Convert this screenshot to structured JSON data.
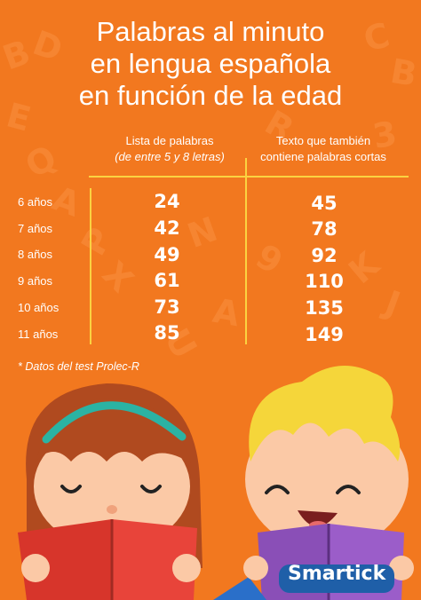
{
  "title": {
    "line1": "Palabras al minuto",
    "line2": "en lengua española",
    "line3": "en función de la edad"
  },
  "columns": {
    "col1_line1": "Lista de palabras",
    "col1_line2": "(de entre 5 y 8 letras)",
    "col2_line1": "Texto que también",
    "col2_line2": "contiene palabras cortas"
  },
  "rows": [
    {
      "age": "6 años",
      "list": "24",
      "text": "45"
    },
    {
      "age": "7 años",
      "list": "42",
      "text": "78"
    },
    {
      "age": "8 años",
      "list": "49",
      "text": "92"
    },
    {
      "age": "9 años",
      "list": "61",
      "text": "110"
    },
    {
      "age": "10 años",
      "list": "73",
      "text": "135"
    },
    {
      "age": "11 años",
      "list": "85",
      "text": "149"
    }
  ],
  "note": "* Datos del test Prolec-R",
  "logo": "Smartick",
  "colors": {
    "background": "#f2781f",
    "accent_line": "#fbd241",
    "text": "#ffffff"
  }
}
